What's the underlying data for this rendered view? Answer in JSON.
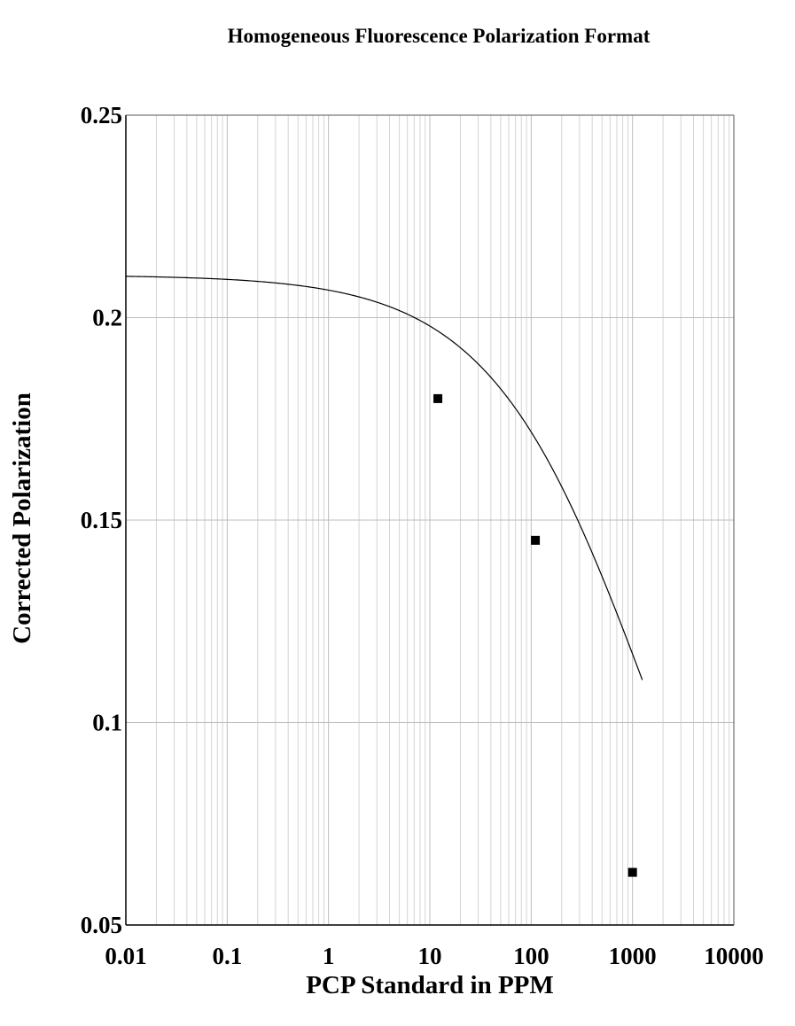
{
  "chart_data": {
    "type": "scatter",
    "title": "Homogeneous Fluorescence Polarization Format",
    "xlabel": "PCP Standard in PPM",
    "ylabel": "Corrected Polarization",
    "x_scale": "log",
    "xlim": [
      0.01,
      10000
    ],
    "ylim": [
      0.05,
      0.25
    ],
    "x_ticks": [
      "0.01",
      "0.1",
      "1",
      "10",
      "100",
      "1000",
      "10000"
    ],
    "y_ticks": [
      "0.05",
      "0.1",
      "0.15",
      "0.2",
      "0.25"
    ],
    "grid": true,
    "points": [
      {
        "x": 12,
        "y": 0.18
      },
      {
        "x": 110,
        "y": 0.145
      },
      {
        "x": 1000,
        "y": 0.063
      }
    ],
    "fit_curve": {
      "model": "four-parameter logistic",
      "top": 0.2105,
      "bottom": 0.0,
      "ec50": 1500,
      "hill": 0.55,
      "x_range": [
        0.01,
        1250
      ]
    },
    "colors": {
      "points": "#000000",
      "curve": "#000000",
      "grid": "#bdbdbd",
      "axes": "#000000"
    }
  }
}
